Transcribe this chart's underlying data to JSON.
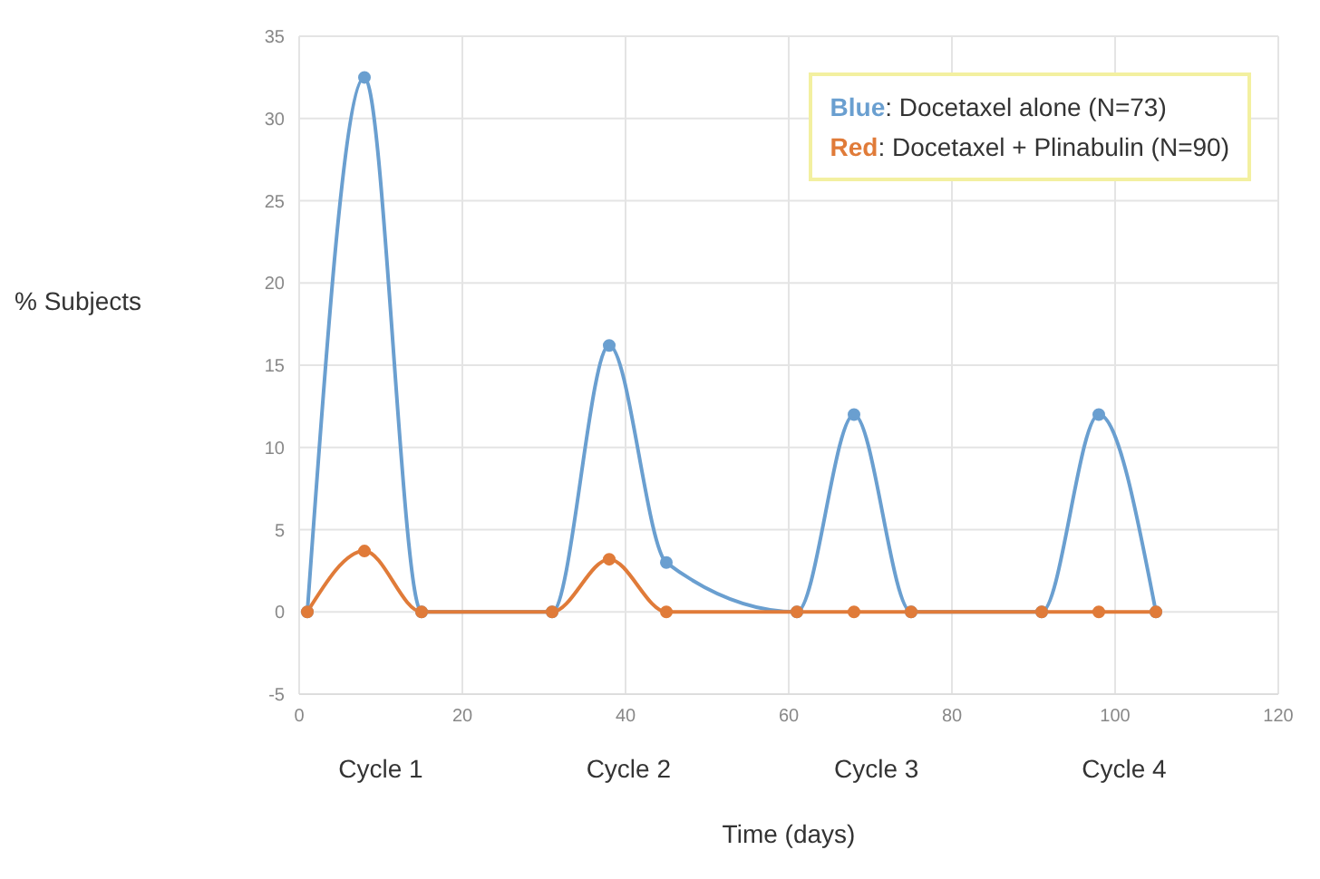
{
  "chart_data": {
    "type": "line",
    "ylabel": "% Subjects",
    "xlabel": "Time (days)",
    "xlim": [
      0,
      120
    ],
    "xticks": [
      0,
      20,
      40,
      60,
      80,
      100,
      120
    ],
    "ylim": [
      -5,
      35
    ],
    "yticks": [
      -5,
      0,
      5,
      10,
      15,
      20,
      25,
      30,
      35
    ],
    "grid": true,
    "legend": "top right",
    "marker": "circle",
    "line_style": "solid",
    "x": [
      1,
      8,
      15,
      31,
      38,
      45,
      61,
      68,
      75,
      91,
      98,
      105
    ],
    "series": [
      {
        "name": "Blue: Docetaxel alone (N=73)",
        "color": "#6a9fd0",
        "values": [
          0,
          32.5,
          0,
          0,
          16.2,
          3,
          0,
          12,
          0,
          0,
          12,
          0
        ]
      },
      {
        "name": "Red: Docetaxel + Plinabulin (N=90)",
        "color": "#e07b39",
        "values": [
          0,
          3.7,
          0,
          0,
          3.2,
          0,
          0,
          0,
          0,
          0,
          0,
          0
        ]
      }
    ],
    "annotations": [
      "Cycle 1",
      "Cycle 2",
      "Cycle 3",
      "Cycle 4"
    ]
  }
}
